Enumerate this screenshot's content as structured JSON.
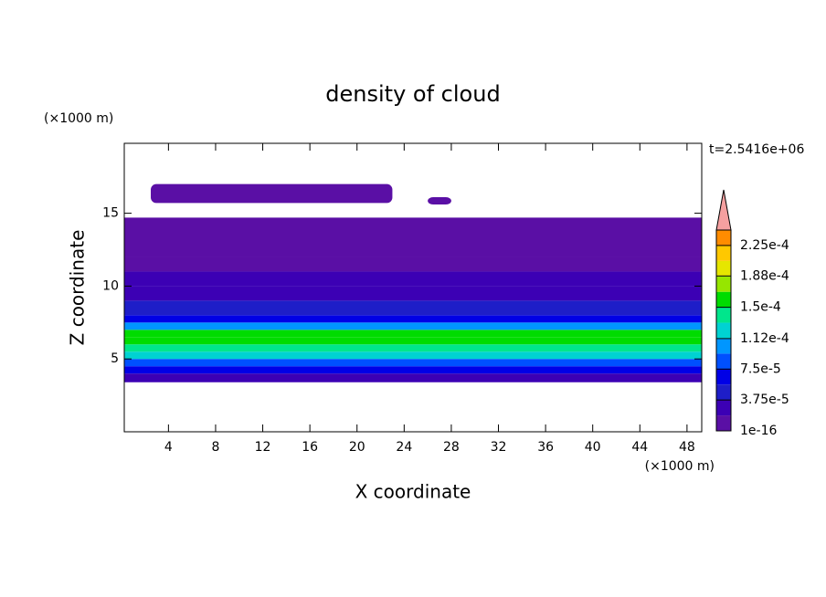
{
  "chart_data": {
    "type": "contour",
    "title": "density of cloud",
    "xlabel": "X coordinate",
    "ylabel": "Z coordinate",
    "x_unit": "(×1000 m)",
    "y_unit": "(×1000 m)",
    "annotation": "t=2.5416e+06",
    "xlim": [
      0.25,
      49.25
    ],
    "ylim": [
      0,
      19.8
    ],
    "xticks": [
      4,
      8,
      12,
      16,
      20,
      24,
      28,
      32,
      36,
      40,
      44,
      48
    ],
    "yticks": [
      5,
      10,
      15
    ],
    "field": {
      "z": [
        3.4,
        4.0,
        4.5,
        5.0,
        5.5,
        6.0,
        6.5,
        7.0,
        7.5,
        8.0,
        9.0,
        10.0,
        11.0,
        12.0,
        14.7
      ],
      "values": [
        3e-05,
        6e-05,
        9e-05,
        0.00012,
        0.000145,
        0.00016,
        0.00015,
        0.0001,
        6e-05,
        4e-05,
        3e-05,
        2e-05,
        1.5e-05,
        5e-06
      ]
    },
    "patches": [
      {
        "x": [
          2.5,
          23
        ],
        "z": [
          15.7,
          17
        ],
        "value": 5e-06
      },
      {
        "x": [
          26,
          28
        ],
        "z": [
          15.6,
          16.1
        ],
        "value": 5e-06
      }
    ],
    "colorbar": {
      "levels": [
        1e-16,
        1.875e-05,
        3.75e-05,
        5.625e-05,
        7.5e-05,
        9.375e-05,
        0.0001125,
        0.00013125,
        0.00015,
        0.00016875,
        0.0001875,
        0.00020625,
        0.000225,
        0.00024375
      ],
      "colors": [
        "#5a0fa5",
        "#3c00b4",
        "#1e1ec8",
        "#0000e6",
        "#0050ff",
        "#0096ff",
        "#00d2d2",
        "#00e68c",
        "#00dc00",
        "#96e600",
        "#e6e600",
        "#ffc800",
        "#ff8c00",
        "#ff3c00"
      ],
      "over_color": "#f5a0a0",
      "ticks": [
        {
          "value": 1e-16,
          "label": "1e-16"
        },
        {
          "value": 3.75e-05,
          "label": "3.75e-5"
        },
        {
          "value": 7.5e-05,
          "label": "7.5e-5"
        },
        {
          "value": 0.000112,
          "label": "1.12e-4"
        },
        {
          "value": 0.00015,
          "label": "1.5e-4"
        },
        {
          "value": 0.000188,
          "label": "1.88e-4"
        },
        {
          "value": 0.000225,
          "label": "2.25e-4"
        }
      ]
    }
  }
}
